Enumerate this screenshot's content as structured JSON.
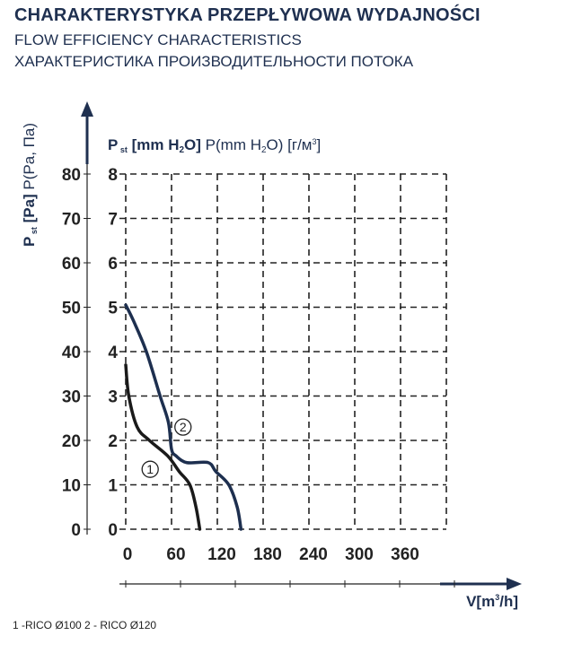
{
  "titles": {
    "pl": "CHARAKTERYSTYKA PRZEPŁYWOWA WYDAJNOŚCI",
    "en": "FLOW EFFICIENCY CHARACTERISTICS",
    "ru": "ХАРАКТЕРИСТИКА ПРОИЗВОДИТЕЛЬНОСТИ ПОТОКА"
  },
  "legend_text": "1 -RICO Ø100   2 - RICO Ø120",
  "chart_data": {
    "type": "line",
    "title": "CHARAKTERYSTYKA PRZEPŁYWOWA WYDAJNOŚCI",
    "xlabel": "V[m³/h]",
    "ylabel": "P st [Pa] P(Pa, Па)",
    "ylabel2": "P st [mm H₂O] P(mm H₂O) [г/м³]",
    "xlim": [
      0,
      420
    ],
    "ylim": [
      0,
      80
    ],
    "y2lim": [
      0,
      8
    ],
    "grid": true,
    "x_ticks": [
      "0",
      "60",
      "120",
      "180",
      "240",
      "300",
      "360"
    ],
    "y_ticks": [
      "0",
      "10",
      "20",
      "30",
      "40",
      "50",
      "60",
      "70",
      "80"
    ],
    "y2_ticks": [
      "0",
      "1",
      "2",
      "3",
      "4",
      "5",
      "6",
      "7",
      "8"
    ],
    "series": [
      {
        "name": "1",
        "label": "RICO Ø100",
        "color": "#1a1a1a",
        "x": [
          0,
          4,
          15,
          31,
          55,
          70,
          84,
          92,
          97
        ],
        "y": [
          37,
          30,
          23,
          20,
          16.5,
          13,
          10,
          5,
          0
        ]
      },
      {
        "name": "2",
        "label": "RICO Ø120",
        "color": "#1d2f4f",
        "x": [
          0,
          10,
          27,
          45,
          56,
          60,
          66,
          80,
          108,
          118,
          135,
          146,
          151
        ],
        "y": [
          50.5,
          47,
          40,
          30,
          24,
          18,
          16.5,
          15,
          15,
          13,
          10,
          5,
          0
        ]
      }
    ],
    "annotations": [
      {
        "text": "2",
        "x": 75,
        "y": 23
      },
      {
        "text": "1",
        "x": 32,
        "y": 13.5
      }
    ]
  }
}
